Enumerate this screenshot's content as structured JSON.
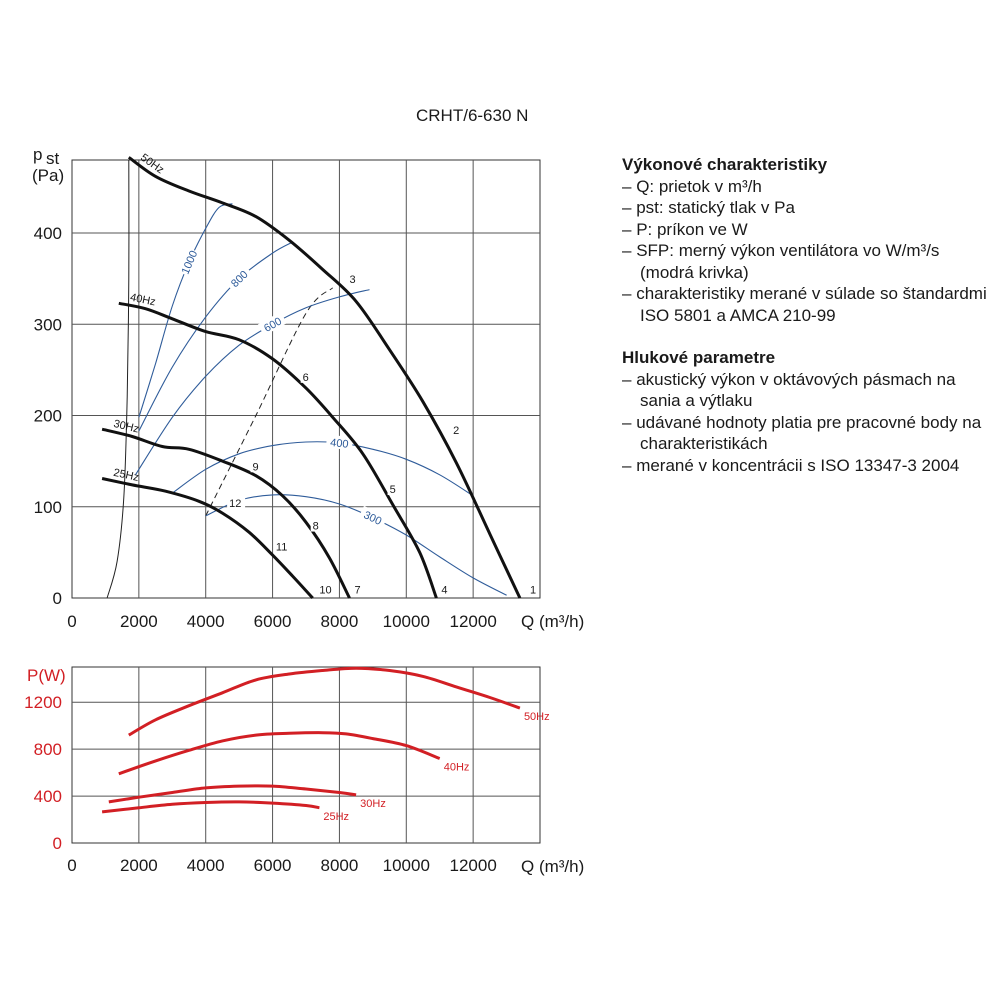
{
  "title": "CRHT/6-630 N",
  "legend": {
    "section1_heading": "Výkonové charakteristiky",
    "section1_items": [
      "Q: prietok v m³/h",
      "pst: statický tlak v Pa",
      "P: príkon ve W",
      "SFP: merný výkon ventilátora vo W/m³/s (modrá krivka)",
      "charakteristiky merané v súlade so štandardmi ISO 5801 a AMCA 210-99"
    ],
    "section2_heading": "Hlukové parametre",
    "section2_items": [
      "akustický výkon v oktávových pásmach na sania a výtlaku",
      "udávané hodnoty platia pre pracovné body na charakteristikách",
      "merané v koncentrácii s ISO 13347-3 2004"
    ]
  },
  "colors": {
    "curve": "#111111",
    "sfp": "#2f5c9a",
    "power": "#d21f24",
    "grid": "#555555"
  },
  "chart_data": [
    {
      "type": "line",
      "ylabel_main": "p",
      "ylabel_sub": "st",
      "yunit": "(Pa)",
      "xlabel": "Q (m³/h)",
      "xlim": [
        0,
        14000
      ],
      "ylim": [
        0,
        480
      ],
      "xticks": [
        0,
        2000,
        4000,
        6000,
        8000,
        10000,
        12000
      ],
      "yticks": [
        0,
        100,
        200,
        300,
        400
      ],
      "grid": true,
      "series": [
        {
          "name": "50Hz",
          "points": [
            [
              1700,
              483
            ],
            [
              2500,
              462
            ],
            [
              3500,
              446
            ],
            [
              4500,
              433
            ],
            [
              5500,
              418
            ],
            [
              6500,
              392
            ],
            [
              7500,
              360
            ],
            [
              8500,
              325
            ],
            [
              9500,
              272
            ],
            [
              10500,
              215
            ],
            [
              11500,
              148
            ],
            [
              12500,
              70
            ],
            [
              13400,
              0
            ]
          ]
        },
        {
          "name": "40Hz",
          "points": [
            [
              1400,
              323
            ],
            [
              2200,
              317
            ],
            [
              3000,
              306
            ],
            [
              4000,
              292
            ],
            [
              5000,
              283
            ],
            [
              6000,
              262
            ],
            [
              7000,
              230
            ],
            [
              7800,
              198
            ],
            [
              8700,
              158
            ],
            [
              9600,
              102
            ],
            [
              10400,
              50
            ],
            [
              10900,
              0
            ]
          ]
        },
        {
          "name": "30Hz",
          "points": [
            [
              900,
              185
            ],
            [
              1800,
              177
            ],
            [
              2700,
              166
            ],
            [
              3500,
              163
            ],
            [
              4500,
              150
            ],
            [
              5500,
              134
            ],
            [
              6300,
              112
            ],
            [
              7000,
              83
            ],
            [
              7700,
              44
            ],
            [
              8300,
              0
            ]
          ]
        },
        {
          "name": "25Hz",
          "points": [
            [
              900,
              131
            ],
            [
              1800,
              124
            ],
            [
              2800,
              117
            ],
            [
              3800,
              106
            ],
            [
              4500,
              93
            ],
            [
              5300,
              72
            ],
            [
              6000,
              47
            ],
            [
              6600,
              24
            ],
            [
              7200,
              0
            ]
          ]
        }
      ],
      "sfp_series": [
        {
          "name": "1000",
          "points": [
            [
              2000,
              198
            ],
            [
              2500,
              257
            ],
            [
              3000,
              320
            ],
            [
              3500,
              368
            ],
            [
              4000,
              405
            ],
            [
              4400,
              428
            ],
            [
              4800,
              432
            ]
          ]
        },
        {
          "name": "800",
          "points": [
            [
              2000,
              183
            ],
            [
              3000,
              253
            ],
            [
              4000,
              308
            ],
            [
              5000,
              350
            ],
            [
              6000,
              378
            ],
            [
              6600,
              390
            ]
          ]
        },
        {
          "name": "600",
          "points": [
            [
              1900,
              135
            ],
            [
              3000,
              198
            ],
            [
              4000,
              243
            ],
            [
              5000,
              277
            ],
            [
              6000,
              300
            ],
            [
              7000,
              318
            ],
            [
              8000,
              330
            ],
            [
              8900,
              338
            ]
          ]
        },
        {
          "name": "400",
          "points": [
            [
              3000,
              115
            ],
            [
              4000,
              141
            ],
            [
              5000,
              158
            ],
            [
              6000,
              167
            ],
            [
              7000,
              171
            ],
            [
              8000,
              170
            ],
            [
              9000,
              163
            ],
            [
              10000,
              152
            ],
            [
              11000,
              135
            ],
            [
              12000,
              112
            ]
          ]
        },
        {
          "name": "300",
          "points": [
            [
              4000,
              90
            ],
            [
              5000,
              107
            ],
            [
              6000,
              113
            ],
            [
              7000,
              111
            ],
            [
              8000,
              103
            ],
            [
              9000,
              88
            ],
            [
              10000,
              69
            ],
            [
              11000,
              45
            ],
            [
              12000,
              22
            ],
            [
              13000,
              3
            ]
          ]
        }
      ],
      "system_lines": [
        {
          "points": [
            [
              1050,
              0
            ],
            [
              1350,
              40
            ],
            [
              1550,
              110
            ],
            [
              1650,
              220
            ],
            [
              1700,
              350
            ],
            [
              1700,
              480
            ]
          ]
        },
        {
          "points": [
            [
              4000,
              90
            ],
            [
              5500,
              200
            ],
            [
              7000,
              312
            ],
            [
              7800,
              340
            ]
          ]
        }
      ],
      "point_labels": [
        {
          "text": "1",
          "q": 13700,
          "p": 5
        },
        {
          "text": "2",
          "q": 11400,
          "p": 180
        },
        {
          "text": "3",
          "q": 8300,
          "p": 345
        },
        {
          "text": "4",
          "q": 11050,
          "p": 5
        },
        {
          "text": "5",
          "q": 9500,
          "p": 115
        },
        {
          "text": "6",
          "q": 6900,
          "p": 238
        },
        {
          "text": "7",
          "q": 8450,
          "p": 5
        },
        {
          "text": "8",
          "q": 7200,
          "p": 75
        },
        {
          "text": "9",
          "q": 5400,
          "p": 140
        },
        {
          "text": "10",
          "q": 7400,
          "p": 5
        },
        {
          "text": "11",
          "q": 6100,
          "p": 52
        },
        {
          "text": "12",
          "q": 4700,
          "p": 100
        }
      ]
    },
    {
      "type": "line",
      "ylabel": "P(W)",
      "xlabel": "Q (m³/h)",
      "xlim": [
        0,
        14000
      ],
      "ylim": [
        0,
        1500
      ],
      "xticks": [
        0,
        2000,
        4000,
        6000,
        8000,
        10000,
        12000
      ],
      "yticks": [
        0,
        400,
        800,
        1200
      ],
      "grid": true,
      "series": [
        {
          "name": "50Hz",
          "points": [
            [
              1700,
              920
            ],
            [
              2500,
              1050
            ],
            [
              3500,
              1170
            ],
            [
              4500,
              1280
            ],
            [
              5500,
              1390
            ],
            [
              6500,
              1440
            ],
            [
              7500,
              1470
            ],
            [
              8500,
              1490
            ],
            [
              9500,
              1470
            ],
            [
              10500,
              1420
            ],
            [
              11500,
              1330
            ],
            [
              12500,
              1240
            ],
            [
              13400,
              1150
            ]
          ]
        },
        {
          "name": "40Hz",
          "points": [
            [
              1400,
              590
            ],
            [
              2500,
              700
            ],
            [
              3500,
              790
            ],
            [
              4500,
              870
            ],
            [
              5500,
              920
            ],
            [
              6500,
              935
            ],
            [
              7500,
              940
            ],
            [
              8200,
              930
            ],
            [
              9000,
              890
            ],
            [
              10000,
              830
            ],
            [
              11000,
              720
            ]
          ]
        },
        {
          "name": "30Hz",
          "points": [
            [
              1100,
              350
            ],
            [
              2000,
              390
            ],
            [
              3000,
              430
            ],
            [
              4000,
              470
            ],
            [
              5000,
              485
            ],
            [
              6000,
              485
            ],
            [
              7000,
              460
            ],
            [
              8000,
              430
            ],
            [
              8500,
              410
            ]
          ]
        },
        {
          "name": "25Hz",
          "points": [
            [
              900,
              265
            ],
            [
              2000,
              300
            ],
            [
              3000,
              330
            ],
            [
              4000,
              345
            ],
            [
              5000,
              350
            ],
            [
              6000,
              340
            ],
            [
              7000,
              320
            ],
            [
              7400,
              300
            ]
          ]
        }
      ]
    }
  ]
}
